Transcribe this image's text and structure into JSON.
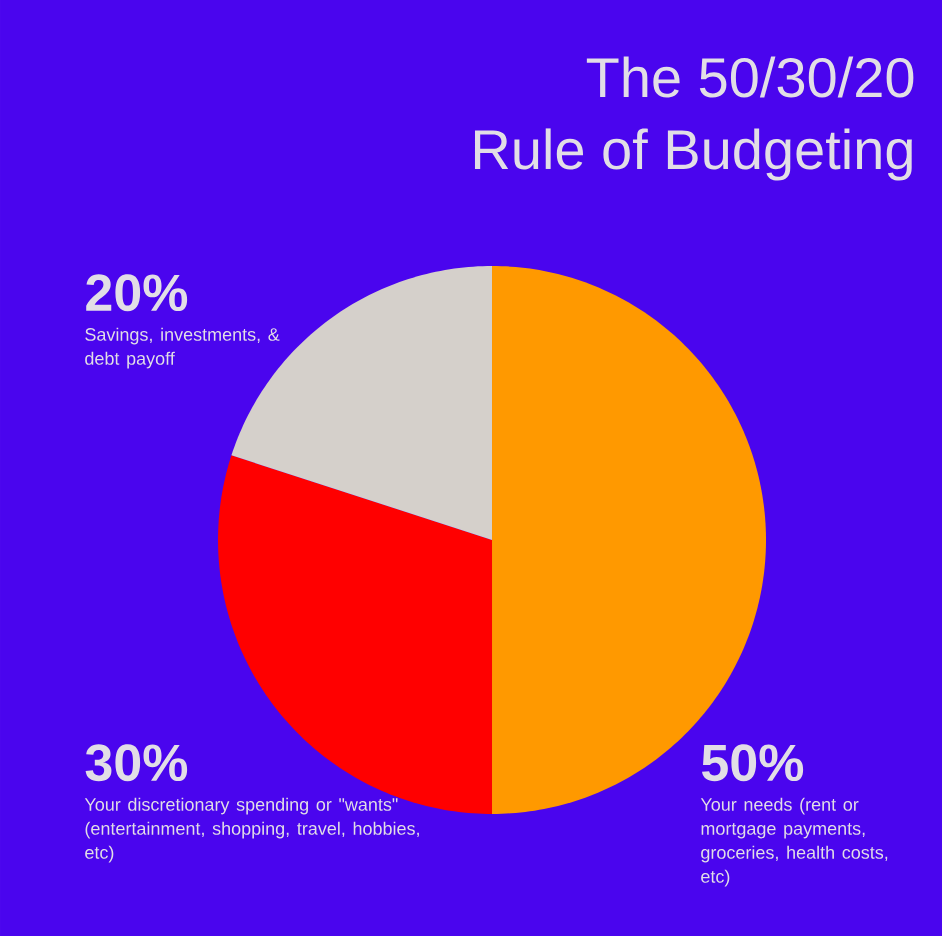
{
  "chart_data": {
    "type": "pie",
    "title": "The 50/30/20 Rule of Budgeting",
    "categories": [
      "Your needs (rent or mortgage payments, groceries, health costs, etc)",
      "Your discretionary spending or \"wants\" (entertainment, shopping, travel, hobbies, etc)",
      "Savings, investments, & debt payoff"
    ],
    "values": [
      50,
      30,
      20
    ],
    "value_labels": [
      "50%",
      "30%",
      "20%"
    ],
    "colors": [
      "#ff9900",
      "#ff0000",
      "#d5d0cb"
    ]
  }
}
